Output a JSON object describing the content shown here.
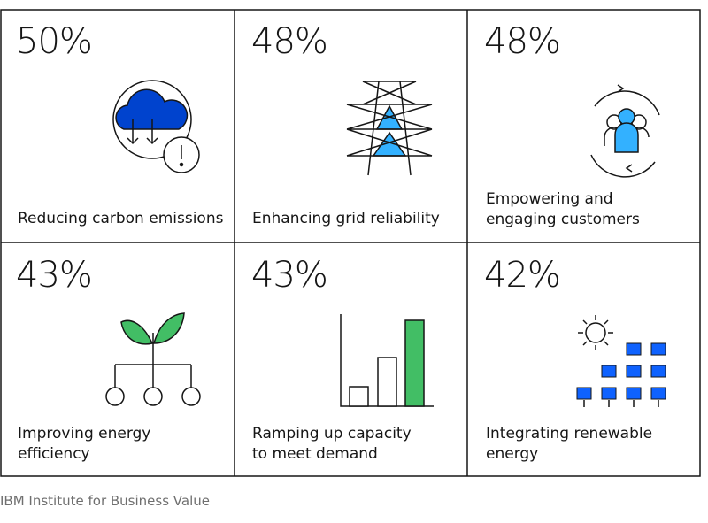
{
  "tiles": [
    {
      "value": "50%",
      "label": [
        "Reducing carbon emissions"
      ]
    },
    {
      "value": "48%",
      "label": [
        "Enhancing grid reliability"
      ]
    },
    {
      "value": "48%",
      "label": [
        "Empowering and",
        "engaging customers"
      ]
    },
    {
      "value": "43%",
      "label": [
        "Improving energy",
        "efficiency"
      ]
    },
    {
      "value": "43%",
      "label": [
        "Ramping up capacity",
        "to meet demand"
      ]
    },
    {
      "value": "42%",
      "label": [
        "Integrating renewable",
        "energy"
      ]
    }
  ],
  "source": "IBM Institute for Business Value"
}
